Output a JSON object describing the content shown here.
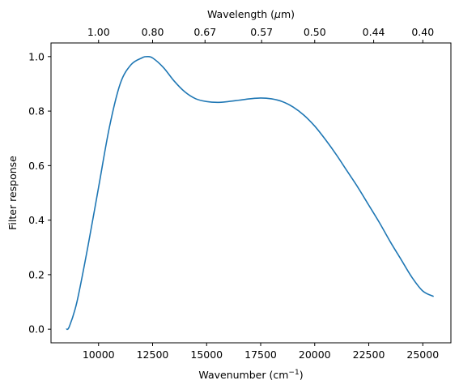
{
  "chart_data": {
    "type": "line",
    "xlabel": "Wavenumber (cm",
    "xlabel_sup": "−1",
    "xlabel_suffix": ")",
    "ylabel": "Filter response",
    "top_xlabel": "Wavelength (",
    "top_xlabel_mu": "μ",
    "top_xlabel_suffix": "m)",
    "xlim": [
      7800,
      26300
    ],
    "ylim": [
      -0.05,
      1.05
    ],
    "x_ticks": [
      10000,
      12500,
      15000,
      17500,
      20000,
      22500,
      25000
    ],
    "x_tick_labels": [
      "10000",
      "12500",
      "15000",
      "17500",
      "20000",
      "22500",
      "25000"
    ],
    "y_ticks": [
      0.0,
      0.2,
      0.4,
      0.6,
      0.8,
      1.0
    ],
    "y_tick_labels": [
      "0.0",
      "0.2",
      "0.4",
      "0.6",
      "0.8",
      "1.0"
    ],
    "top_ticks": [
      10000,
      12500,
      14925,
      17544,
      20000,
      22727,
      25000
    ],
    "top_tick_labels": [
      "1.00",
      "0.80",
      "0.67",
      "0.57",
      "0.50",
      "0.44",
      "0.40"
    ],
    "grid": false,
    "series": [
      {
        "color": "#1f77b4",
        "x": [
          8500,
          8650,
          9000,
          9500,
          10000,
          10500,
          11000,
          11500,
          12000,
          12250,
          12500,
          13000,
          13500,
          14000,
          14500,
          15000,
          15500,
          16000,
          16500,
          17000,
          17500,
          18000,
          18500,
          19000,
          19500,
          20000,
          20500,
          21000,
          21500,
          22000,
          22500,
          23000,
          23500,
          24000,
          24500,
          25000,
          25500
        ],
        "y": [
          0.0,
          0.01,
          0.1,
          0.3,
          0.52,
          0.74,
          0.9,
          0.97,
          0.995,
          1.0,
          0.995,
          0.96,
          0.91,
          0.87,
          0.845,
          0.835,
          0.832,
          0.835,
          0.84,
          0.845,
          0.848,
          0.845,
          0.835,
          0.815,
          0.785,
          0.745,
          0.695,
          0.64,
          0.58,
          0.52,
          0.455,
          0.39,
          0.32,
          0.255,
          0.19,
          0.14,
          0.12
        ]
      }
    ]
  }
}
